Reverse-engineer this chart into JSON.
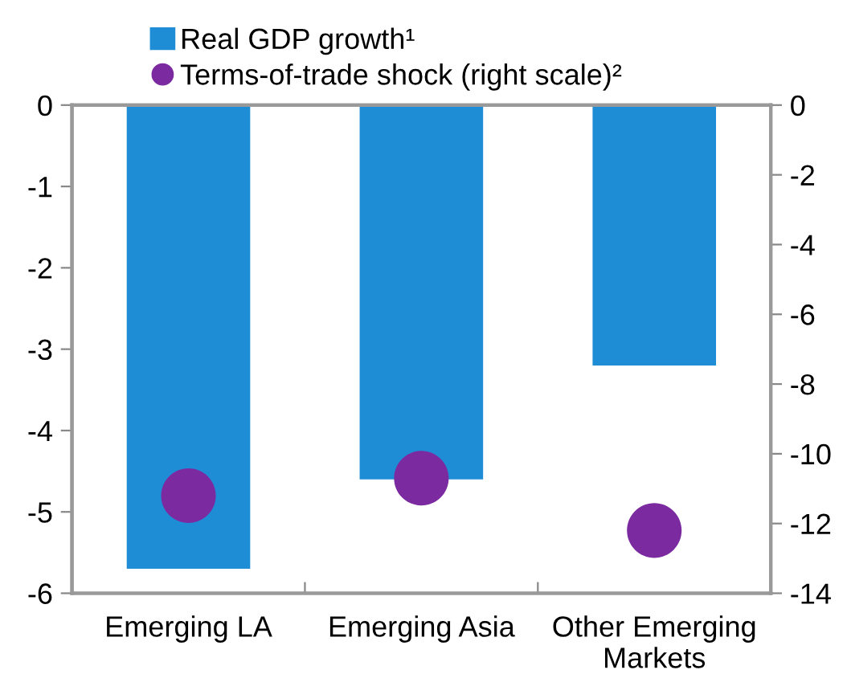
{
  "chart_data": {
    "type": "bar",
    "categories": [
      "Emerging LA",
      "Emerging Asia",
      "Other Emerging\nMarkets"
    ],
    "series": [
      {
        "name": "Real GDP growth¹",
        "color": "#1f8dd6",
        "values": [
          -5.7,
          -4.6,
          -3.2
        ]
      },
      {
        "name": "Terms-of-trade shock (right scale)²",
        "type": "scatter",
        "axis": "y2",
        "color": "#7b2aa0",
        "values": [
          -11.2,
          -10.7,
          -12.2
        ]
      }
    ],
    "ylim": [
      -6,
      0
    ],
    "yticks": [
      -6,
      -5,
      -4,
      -3,
      -2,
      -1,
      0
    ],
    "y2lim": [
      -14,
      0
    ],
    "y2ticks": [
      -14,
      -12,
      -10,
      -8,
      -6,
      -4,
      -2,
      0
    ],
    "grid": false,
    "legend": "top",
    "marker": "circle"
  }
}
